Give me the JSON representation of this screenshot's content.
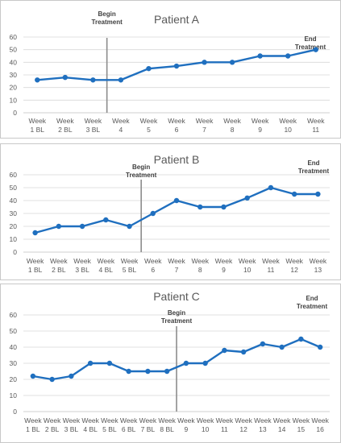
{
  "chart_data": [
    {
      "type": "line",
      "title": "Patient A",
      "categories": [
        [
          "Week",
          "1 BL"
        ],
        [
          "Week",
          "2 BL"
        ],
        [
          "Week",
          "3 BL"
        ],
        [
          "Week",
          "4"
        ],
        [
          "Week",
          "5"
        ],
        [
          "Week",
          "6"
        ],
        [
          "Week",
          "7"
        ],
        [
          "Week",
          "8"
        ],
        [
          "Week",
          "9"
        ],
        [
          "Week",
          "10"
        ],
        [
          "Week",
          "11"
        ]
      ],
      "values": [
        26,
        28,
        26,
        26,
        35,
        37,
        40,
        40,
        45,
        45,
        50
      ],
      "ylim": [
        0,
        60
      ],
      "yticks": [
        0,
        10,
        20,
        30,
        40,
        50,
        60
      ],
      "grid": true,
      "color": "#1f6fbf",
      "begin_after_index": 2,
      "annotations": {
        "begin": [
          "Begin",
          "Treatment"
        ],
        "end": [
          "End",
          "Treatment"
        ]
      }
    },
    {
      "type": "line",
      "title": "Patient B",
      "categories": [
        [
          "Week",
          "1 BL"
        ],
        [
          "Week",
          "2 BL"
        ],
        [
          "Week",
          "3 BL"
        ],
        [
          "Week",
          "4 BL"
        ],
        [
          "Week",
          "5 BL"
        ],
        [
          "Week",
          "6"
        ],
        [
          "Week",
          "7"
        ],
        [
          "Week",
          "8"
        ],
        [
          "Week",
          "9"
        ],
        [
          "Week",
          "10"
        ],
        [
          "Week",
          "11"
        ],
        [
          "Week",
          "12"
        ],
        [
          "Week",
          "13"
        ]
      ],
      "values": [
        15,
        20,
        20,
        25,
        20,
        30,
        40,
        35,
        35,
        42,
        50,
        45,
        45
      ],
      "ylim": [
        0,
        60
      ],
      "yticks": [
        0,
        10,
        20,
        30,
        40,
        50,
        60
      ],
      "grid": true,
      "color": "#1f6fbf",
      "begin_after_index": 4,
      "annotations": {
        "begin": [
          "Begin",
          "Treatment"
        ],
        "end": [
          "End",
          "Treatment"
        ]
      }
    },
    {
      "type": "line",
      "title": "Patient C",
      "categories": [
        [
          "Week",
          "1 BL"
        ],
        [
          "Week",
          "2 BL"
        ],
        [
          "Week",
          "3 BL"
        ],
        [
          "Week",
          "4 BL"
        ],
        [
          "Week",
          "5 BL"
        ],
        [
          "Week",
          "6 BL"
        ],
        [
          "Week",
          "7 BL"
        ],
        [
          "Week",
          "8 BL"
        ],
        [
          "Week",
          "9"
        ],
        [
          "Week",
          "10"
        ],
        [
          "Week",
          "11"
        ],
        [
          "Week",
          "12"
        ],
        [
          "Week",
          "13"
        ],
        [
          "Week",
          "14"
        ],
        [
          "Week",
          "15"
        ],
        [
          "Week",
          "16"
        ]
      ],
      "values": [
        22,
        20,
        22,
        30,
        30,
        25,
        25,
        25,
        30,
        30,
        38,
        37,
        42,
        40,
        45,
        40
      ],
      "ylim": [
        0,
        60
      ],
      "yticks": [
        0,
        10,
        20,
        30,
        40,
        50,
        60
      ],
      "grid": true,
      "color": "#1f6fbf",
      "begin_after_index": 7,
      "annotations": {
        "begin": [
          "Begin",
          "Treatment"
        ],
        "end": [
          "End",
          "Treatment"
        ]
      }
    }
  ]
}
